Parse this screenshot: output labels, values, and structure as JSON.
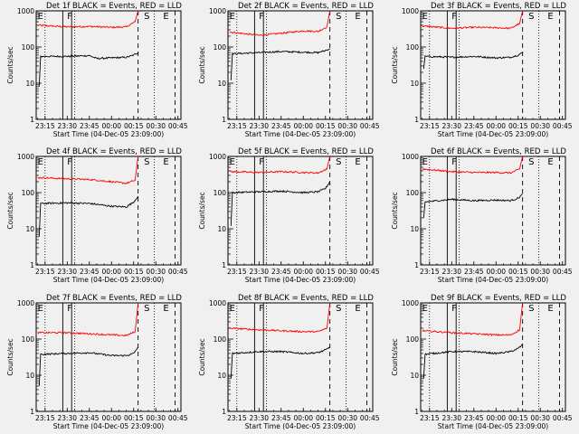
{
  "chart_data": [
    {
      "type": "line",
      "title": "Det 1f BLACK = Events, RED = LLD",
      "xlabel": "Start Time (04-Dec-05 23:09:00)",
      "ylabel": "Counts/sec",
      "yscale": "log",
      "ylim": [
        1,
        1000
      ],
      "xlim": [
        "23:09",
        "00:47"
      ],
      "xticks": [
        "23:15",
        "23:30",
        "23:45",
        "00:00",
        "00:15",
        "00:30",
        "00:45"
      ],
      "yticks": [
        "1",
        "10",
        "100",
        "1000"
      ],
      "markers": {
        "E": "23:10",
        "F": "23:30",
        "S": "00:22",
        "E2": "00:35"
      },
      "vlines": {
        "dotted": [
          "23:15",
          "23:35",
          "00:29"
        ],
        "solid": [
          "23:27",
          "23:33"
        ],
        "dashed": [
          "00:18",
          "00:43"
        ]
      },
      "series": [
        {
          "name": "RED = LLD",
          "color": "#ff0000",
          "values": {
            "23:10": 400,
            "23:30": 360,
            "23:45": 370,
            "00:00": 350,
            "00:10": 360,
            "00:16": 500,
            "00:18": 1000
          }
        },
        {
          "name": "BLACK = Events",
          "color": "#000000",
          "values": {
            "23:11": 8,
            "23:12": 55,
            "23:30": 55,
            "23:45": 58,
            "23:50": 48,
            "00:00": 50,
            "00:10": 52,
            "00:15": 60,
            "00:18": 70
          }
        }
      ]
    },
    {
      "type": "line",
      "title": "Det 2f BLACK = Events, RED = LLD",
      "xlabel": "Start Time (04-Dec-05 23:09:00)",
      "ylabel": "Counts/sec",
      "yscale": "log",
      "ylim": [
        1,
        1000
      ],
      "xlim": [
        "23:09",
        "00:47"
      ],
      "xticks": [
        "23:15",
        "23:30",
        "23:45",
        "00:00",
        "00:15",
        "00:30",
        "00:45"
      ],
      "yticks": [
        "1",
        "10",
        "100",
        "1000"
      ],
      "markers": {
        "E": "23:10",
        "F": "23:30",
        "S": "00:22",
        "E2": "00:35"
      },
      "vlines": {
        "dotted": [
          "23:15",
          "23:35",
          "00:29"
        ],
        "solid": [
          "23:27",
          "23:33"
        ],
        "dashed": [
          "00:18",
          "00:43"
        ]
      },
      "series": [
        {
          "name": "RED = LLD",
          "color": "#ff0000",
          "values": {
            "23:10": 260,
            "23:30": 210,
            "23:45": 240,
            "00:00": 280,
            "00:10": 270,
            "00:16": 360,
            "00:18": 1000
          }
        },
        {
          "name": "BLACK = Events",
          "color": "#000000",
          "values": {
            "23:11": 12,
            "23:12": 65,
            "23:30": 70,
            "23:45": 75,
            "00:00": 72,
            "00:10": 70,
            "00:15": 80,
            "00:18": 90
          }
        }
      ]
    },
    {
      "type": "line",
      "title": "Det 3f BLACK = Events, RED = LLD",
      "xlabel": "Start Time (04-Dec-05 23:09:00)",
      "ylabel": "Counts/sec",
      "yscale": "log",
      "ylim": [
        1,
        1000
      ],
      "xlim": [
        "23:09",
        "00:47"
      ],
      "xticks": [
        "23:15",
        "23:30",
        "23:45",
        "00:00",
        "00:15",
        "00:30",
        "00:45"
      ],
      "yticks": [
        "1",
        "10",
        "100",
        "1000"
      ],
      "markers": {
        "E": "23:10",
        "F": "23:30",
        "S": "00:22",
        "E2": "00:35"
      },
      "vlines": {
        "dotted": [
          "23:15",
          "23:35",
          "00:29"
        ],
        "solid": [
          "23:27",
          "23:33"
        ],
        "dashed": [
          "00:18",
          "00:43"
        ]
      },
      "series": [
        {
          "name": "RED = LLD",
          "color": "#ff0000",
          "values": {
            "23:10": 380,
            "23:30": 330,
            "23:45": 350,
            "00:00": 340,
            "00:10": 330,
            "00:16": 450,
            "00:18": 1000
          }
        },
        {
          "name": "BLACK = Events",
          "color": "#000000",
          "values": {
            "23:11": 25,
            "23:12": 55,
            "23:30": 52,
            "23:45": 55,
            "00:00": 50,
            "00:10": 52,
            "00:15": 60,
            "00:18": 70
          }
        }
      ]
    },
    {
      "type": "line",
      "title": "Det 4f BLACK = Events, RED = LLD",
      "xlabel": "Start Time (04-Dec-05 23:09:00)",
      "ylabel": "Counts/sec",
      "yscale": "log",
      "ylim": [
        1,
        1000
      ],
      "xlim": [
        "23:09",
        "00:47"
      ],
      "xticks": [
        "23:15",
        "23:30",
        "23:45",
        "00:00",
        "00:15",
        "00:30",
        "00:45"
      ],
      "yticks": [
        "1",
        "10",
        "100",
        "1000"
      ],
      "markers": {
        "E": "23:10",
        "F": "23:30",
        "S": "00:22",
        "E2": "00:35"
      },
      "vlines": {
        "dotted": [
          "23:15",
          "23:35",
          "00:29"
        ],
        "solid": [
          "23:27",
          "23:33"
        ],
        "dashed": [
          "00:18",
          "00:43"
        ]
      },
      "series": [
        {
          "name": "RED = LLD",
          "color": "#ff0000",
          "values": {
            "23:10": 260,
            "23:30": 240,
            "23:45": 230,
            "00:00": 200,
            "00:10": 180,
            "00:16": 220,
            "00:18": 1000
          }
        },
        {
          "name": "BLACK = Events",
          "color": "#000000",
          "values": {
            "23:11": 6,
            "23:12": 50,
            "23:30": 52,
            "23:45": 50,
            "00:00": 42,
            "00:10": 40,
            "00:15": 55,
            "00:18": 80
          }
        }
      ]
    },
    {
      "type": "line",
      "title": "Det 5f BLACK = Events, RED = LLD",
      "xlabel": "Start Time (04-Dec-05 23:09:00)",
      "ylabel": "Counts/sec",
      "yscale": "log",
      "ylim": [
        1,
        1000
      ],
      "xlim": [
        "23:09",
        "00:47"
      ],
      "xticks": [
        "23:15",
        "23:30",
        "23:45",
        "00:00",
        "00:15",
        "00:30",
        "00:45"
      ],
      "yticks": [
        "1",
        "10",
        "100",
        "1000"
      ],
      "markers": {
        "E": "23:10",
        "F": "23:30",
        "S": "00:22",
        "E2": "00:35"
      },
      "vlines": {
        "dotted": [
          "23:15",
          "23:35",
          "00:29"
        ],
        "solid": [
          "23:27",
          "23:33"
        ],
        "dashed": [
          "00:18",
          "00:43"
        ]
      },
      "series": [
        {
          "name": "RED = LLD",
          "color": "#ff0000",
          "values": {
            "23:10": 380,
            "23:30": 360,
            "23:45": 380,
            "00:00": 360,
            "00:10": 350,
            "00:16": 450,
            "00:18": 1000
          }
        },
        {
          "name": "BLACK = Events",
          "color": "#000000",
          "values": {
            "23:11": 12,
            "23:12": 100,
            "23:30": 105,
            "23:45": 110,
            "00:00": 100,
            "00:10": 105,
            "00:15": 130,
            "00:18": 200
          }
        }
      ]
    },
    {
      "type": "line",
      "title": "Det 6f BLACK = Events, RED = LLD",
      "xlabel": "Start Time (04-Dec-05 23:09:00)",
      "ylabel": "Counts/sec",
      "yscale": "log",
      "ylim": [
        1,
        1000
      ],
      "xlim": [
        "23:09",
        "00:47"
      ],
      "xticks": [
        "23:15",
        "23:30",
        "23:45",
        "00:00",
        "00:15",
        "00:30",
        "00:45"
      ],
      "yticks": [
        "1",
        "10",
        "100",
        "1000"
      ],
      "markers": {
        "E": "23:10",
        "F": "23:30",
        "S": "00:22",
        "E2": "00:35"
      },
      "vlines": {
        "dotted": [
          "23:15",
          "23:35",
          "00:29"
        ],
        "solid": [
          "23:27",
          "23:33"
        ],
        "dashed": [
          "00:18",
          "00:43"
        ]
      },
      "series": [
        {
          "name": "RED = LLD",
          "color": "#ff0000",
          "values": {
            "23:10": 450,
            "23:30": 380,
            "23:45": 360,
            "00:00": 360,
            "00:10": 350,
            "00:16": 450,
            "00:18": 1000
          }
        },
        {
          "name": "BLACK = Events",
          "color": "#000000",
          "values": {
            "23:11": 20,
            "23:12": 55,
            "23:30": 65,
            "23:45": 60,
            "00:00": 62,
            "00:10": 60,
            "00:15": 70,
            "00:18": 90
          }
        }
      ]
    },
    {
      "type": "line",
      "title": "Det 7f BLACK = Events, RED = LLD",
      "xlabel": "Start Time (04-Dec-05 23:09:00)",
      "ylabel": "Counts/sec",
      "yscale": "log",
      "ylim": [
        1,
        1000
      ],
      "xlim": [
        "23:09",
        "00:47"
      ],
      "xticks": [
        "23:15",
        "23:30",
        "23:45",
        "00:00",
        "00:15",
        "00:30",
        "00:45"
      ],
      "yticks": [
        "1",
        "10",
        "100",
        "1000"
      ],
      "markers": {
        "E": "23:10",
        "F": "23:30",
        "S": "00:22",
        "E2": "00:35"
      },
      "vlines": {
        "dotted": [
          "23:15",
          "23:35",
          "00:29"
        ],
        "solid": [
          "23:27",
          "23:33"
        ],
        "dashed": [
          "00:18",
          "00:43"
        ]
      },
      "series": [
        {
          "name": "RED = LLD",
          "color": "#ff0000",
          "values": {
            "23:10": 150,
            "23:30": 150,
            "23:45": 140,
            "00:00": 130,
            "00:10": 125,
            "00:16": 160,
            "00:18": 1000
          }
        },
        {
          "name": "BLACK = Events",
          "color": "#000000",
          "values": {
            "23:11": 5,
            "23:12": 38,
            "23:30": 40,
            "23:45": 42,
            "00:00": 35,
            "00:10": 35,
            "00:15": 40,
            "00:18": 60
          }
        }
      ]
    },
    {
      "type": "line",
      "title": "Det 8f BLACK = Events, RED = LLD",
      "xlabel": "Start Time (04-Dec-05 23:09:00)",
      "ylabel": "Counts/sec",
      "yscale": "log",
      "ylim": [
        1,
        1000
      ],
      "xlim": [
        "23:09",
        "00:47"
      ],
      "xticks": [
        "23:15",
        "23:30",
        "23:45",
        "00:00",
        "00:15",
        "00:30",
        "00:45"
      ],
      "yticks": [
        "1",
        "10",
        "100",
        "1000"
      ],
      "markers": {
        "E": "23:10",
        "F": "23:30",
        "S": "00:22",
        "E2": "00:35"
      },
      "vlines": {
        "dotted": [
          "23:15",
          "23:35",
          "00:29"
        ],
        "solid": [
          "23:27",
          "23:33"
        ],
        "dashed": [
          "00:18",
          "00:43"
        ]
      },
      "series": [
        {
          "name": "RED = LLD",
          "color": "#ff0000",
          "values": {
            "23:10": 200,
            "23:30": 180,
            "23:45": 170,
            "00:00": 160,
            "00:10": 160,
            "00:16": 200,
            "00:18": 1000
          }
        },
        {
          "name": "BLACK = Events",
          "color": "#000000",
          "values": {
            "23:11": 8,
            "23:12": 40,
            "23:30": 45,
            "23:45": 45,
            "00:00": 40,
            "00:10": 42,
            "00:15": 50,
            "00:18": 60
          }
        }
      ]
    },
    {
      "type": "line",
      "title": "Det 9f BLACK = Events, RED = LLD",
      "xlabel": "Start Time (04-Dec-05 23:09:00)",
      "ylabel": "Counts/sec",
      "yscale": "log",
      "ylim": [
        1,
        1000
      ],
      "xlim": [
        "23:09",
        "00:47"
      ],
      "xticks": [
        "23:15",
        "23:30",
        "23:45",
        "00:00",
        "00:15",
        "00:30",
        "00:45"
      ],
      "yticks": [
        "1",
        "10",
        "100",
        "1000"
      ],
      "markers": {
        "E": "23:10",
        "F": "23:30",
        "S": "00:22",
        "E2": "00:35"
      },
      "vlines": {
        "dotted": [
          "23:15",
          "23:35",
          "00:29"
        ],
        "solid": [
          "23:27",
          "23:33"
        ],
        "dashed": [
          "00:18",
          "00:43"
        ]
      },
      "series": [
        {
          "name": "RED = LLD",
          "color": "#ff0000",
          "values": {
            "23:10": 170,
            "23:30": 150,
            "23:45": 140,
            "00:00": 130,
            "00:10": 130,
            "00:16": 180,
            "00:18": 1000
          }
        },
        {
          "name": "BLACK = Events",
          "color": "#000000",
          "values": {
            "23:11": 8,
            "23:12": 38,
            "23:30": 45,
            "23:45": 45,
            "00:00": 40,
            "00:10": 45,
            "00:15": 55,
            "00:18": 70
          }
        }
      ]
    }
  ]
}
